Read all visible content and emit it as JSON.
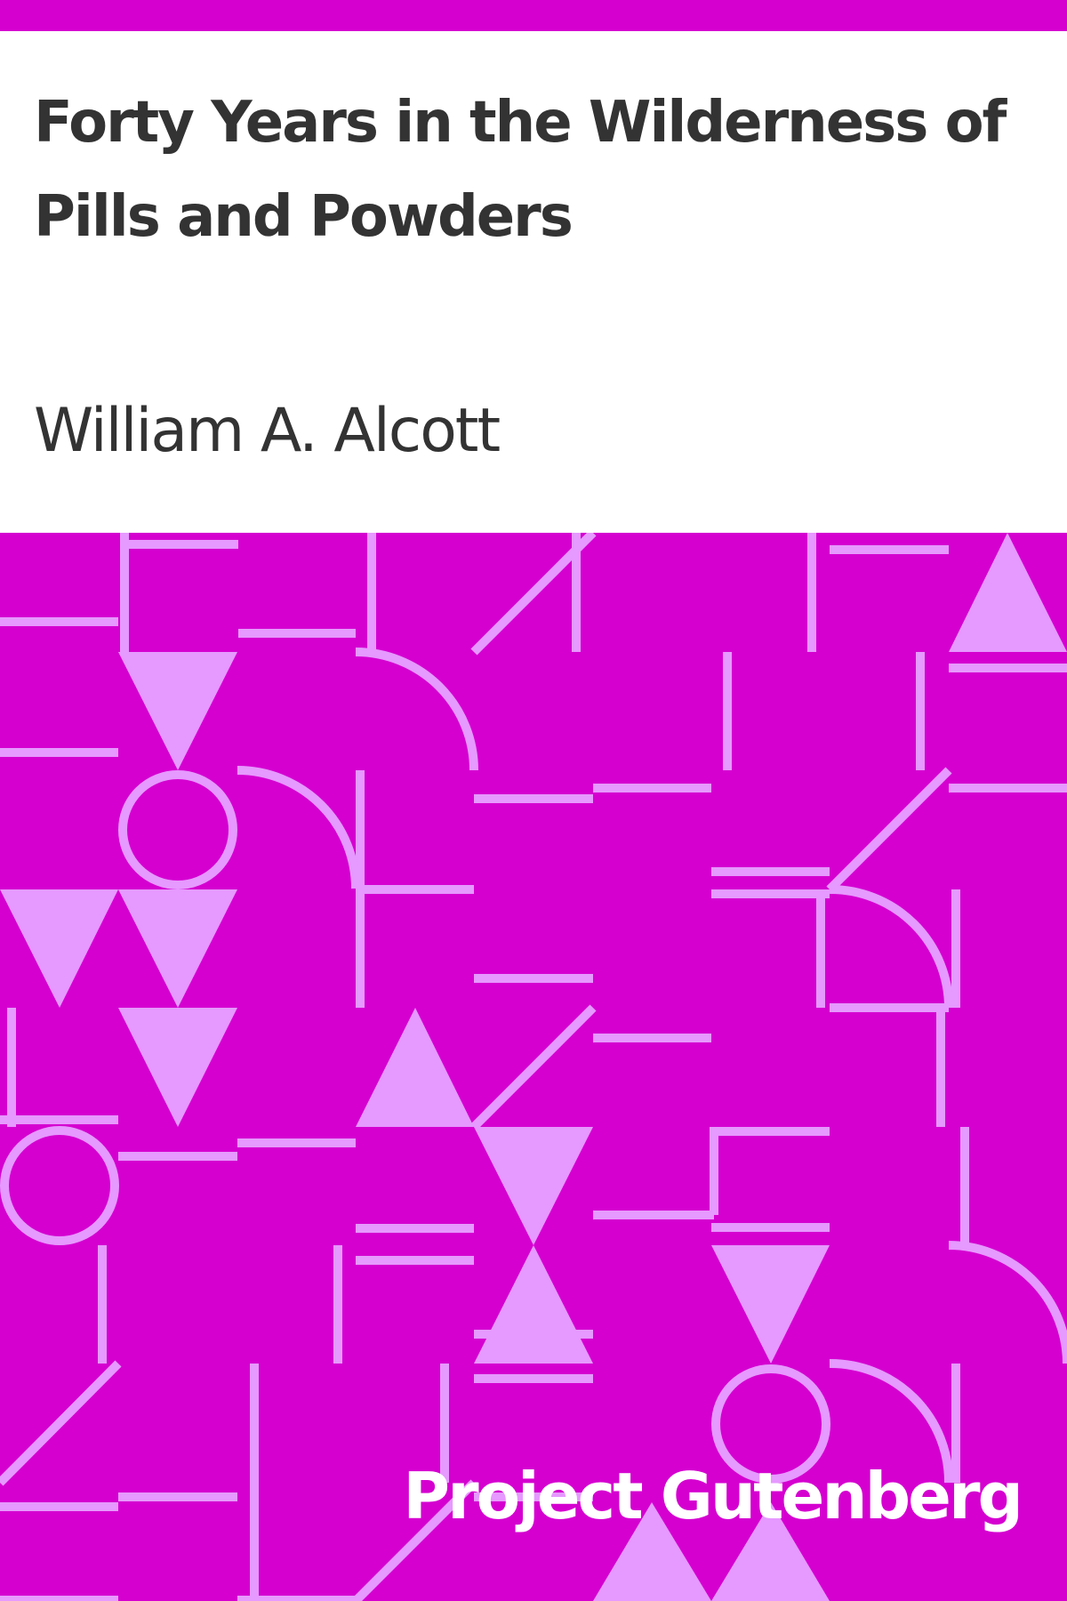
{
  "book": {
    "title": "Forty Years in the Wilderness of Pills and Powders",
    "author": "William A. Alcott",
    "publisher": "Project Gutenberg"
  },
  "colors": {
    "accent": "#d500d0",
    "pattern_light": "#e699ff",
    "text": "#333333",
    "publisher_text": "#ffffff",
    "background": "#ffffff"
  },
  "decoration": {
    "pattern_icon": "geometric-pattern",
    "motifs": [
      "bar",
      "triangle",
      "circle",
      "quarter-arc",
      "diagonal"
    ]
  }
}
